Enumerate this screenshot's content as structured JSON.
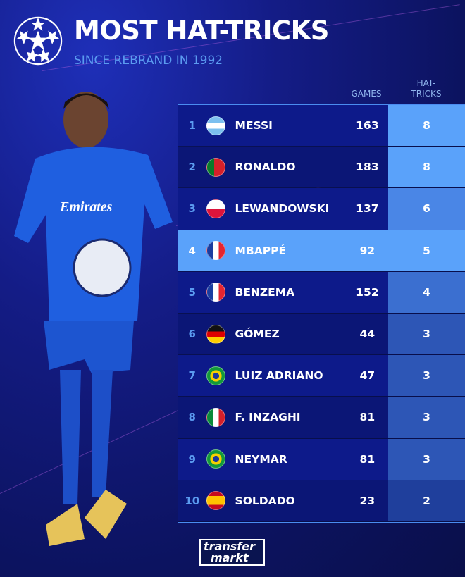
{
  "header": {
    "title": "MOST HAT-TRICKS",
    "subtitle": "SINCE REBRAND IN 1992",
    "logo_icon": "champions-league-starball-icon"
  },
  "columns": {
    "games": "GAMES",
    "hat_tricks_1": "HAT-",
    "hat_tricks_2": "TRICKS"
  },
  "rows": [
    {
      "rank": "1",
      "flag": "argentina",
      "name": "MESSI",
      "games": "163",
      "hat_tricks": "8"
    },
    {
      "rank": "2",
      "flag": "portugal",
      "name": "RONALDO",
      "games": "183",
      "hat_tricks": "8"
    },
    {
      "rank": "3",
      "flag": "poland",
      "name": "LEWANDOWSKI",
      "games": "137",
      "hat_tricks": "6"
    },
    {
      "rank": "4",
      "flag": "france",
      "name": "MBAPPÉ",
      "games": "92",
      "hat_tricks": "5",
      "highlight": true
    },
    {
      "rank": "5",
      "flag": "france",
      "name": "BENZEMA",
      "games": "152",
      "hat_tricks": "4"
    },
    {
      "rank": "6",
      "flag": "germany",
      "name": "GÓMEZ",
      "games": "44",
      "hat_tricks": "3"
    },
    {
      "rank": "7",
      "flag": "brazil",
      "name": "LUIZ ADRIANO",
      "games": "47",
      "hat_tricks": "3"
    },
    {
      "rank": "8",
      "flag": "italy",
      "name": "F. INZAGHI",
      "games": "81",
      "hat_tricks": "3"
    },
    {
      "rank": "9",
      "flag": "brazil",
      "name": "NEYMAR",
      "games": "81",
      "hat_tricks": "3"
    },
    {
      "rank": "10",
      "flag": "spain",
      "name": "SOLDADO",
      "games": "23",
      "hat_tricks": "2"
    }
  ],
  "branding": {
    "line1": "transfer",
    "line2": "markt"
  },
  "colors": {
    "highlight": "#5aa2fa",
    "accent": "#5b9bf0",
    "row_dark": "#0d1a8a"
  }
}
